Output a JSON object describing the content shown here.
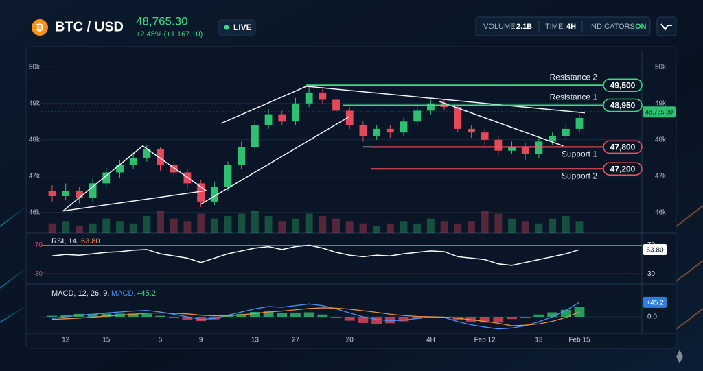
{
  "header": {
    "symbol": "BTC / USD",
    "price": "48,765.30",
    "change": "+2.45% (+1,167.10)",
    "status": "LIVE",
    "stats": [
      {
        "label": "VOLUME:",
        "value": "2.1B"
      },
      {
        "label": "TIME:",
        "value": "4H"
      },
      {
        "label": "INDICATORS:",
        "value": "ON"
      }
    ]
  },
  "chart_data": [
    {
      "type": "candlestick",
      "categories": [
        null,
        "12",
        null,
        null,
        "15",
        null,
        null,
        null,
        "5",
        null,
        null,
        "9",
        null,
        null,
        null,
        "13",
        null,
        null,
        "27",
        null,
        null,
        null,
        "20",
        null,
        null,
        null,
        null,
        null,
        "4H",
        null,
        null,
        null,
        "Feb 12",
        null,
        null,
        null,
        "13",
        null,
        null,
        "Feb 15"
      ],
      "open": [
        46600,
        46450,
        46600,
        46400,
        46800,
        47100,
        47300,
        47500,
        47750,
        47300,
        47100,
        46800,
        46300,
        46700,
        47300,
        47800,
        48400,
        48700,
        48500,
        49000,
        49300,
        49100,
        48800,
        48400,
        48100,
        48300,
        48200,
        48500,
        48800,
        49000,
        48900,
        48300,
        48200,
        48000,
        47700,
        47800,
        47600,
        47950,
        48100,
        48300
      ],
      "high": [
        46750,
        46800,
        46700,
        46950,
        47250,
        47450,
        47650,
        47850,
        47800,
        47400,
        47200,
        46900,
        46850,
        47400,
        47950,
        48600,
        48850,
        48800,
        49150,
        49450,
        49400,
        49200,
        48900,
        48500,
        48400,
        48400,
        48600,
        48950,
        49100,
        49100,
        48950,
        48400,
        48300,
        48100,
        47950,
        47900,
        48050,
        48200,
        48450,
        48700
      ],
      "low": [
        46300,
        46350,
        46250,
        46300,
        46700,
        46950,
        47200,
        47400,
        47150,
        47000,
        46650,
        46150,
        46200,
        46600,
        47200,
        47700,
        48300,
        48400,
        48400,
        48900,
        49000,
        48700,
        48300,
        47950,
        48000,
        48050,
        48100,
        48400,
        48700,
        48800,
        48200,
        48050,
        47850,
        47550,
        47600,
        47450,
        47500,
        47850,
        48000,
        48200
      ],
      "close": [
        46450,
        46600,
        46400,
        46800,
        47100,
        47300,
        47500,
        47750,
        47300,
        47100,
        46800,
        46300,
        46700,
        47300,
        47800,
        48400,
        48700,
        48500,
        49000,
        49300,
        49100,
        48800,
        48400,
        48100,
        48300,
        48200,
        48500,
        48800,
        49000,
        48900,
        48300,
        48200,
        48000,
        47700,
        47800,
        47600,
        47950,
        48100,
        48300,
        48600
      ],
      "volume": [
        4,
        5,
        3,
        4,
        6,
        5,
        4,
        7,
        9,
        6,
        5,
        8,
        6,
        7,
        8,
        9,
        7,
        5,
        6,
        8,
        7,
        6,
        5,
        4,
        3,
        4,
        5,
        4,
        6,
        5,
        4,
        5,
        9,
        8,
        6,
        5,
        4,
        6,
        7,
        5
      ],
      "up_color": "#2fbf71",
      "down_color": "#e5475b",
      "ylim": [
        45430,
        50430
      ],
      "yticks": [
        {
          "value": 46000,
          "label": "46k"
        },
        {
          "value": 47000,
          "label": "47k"
        },
        {
          "value": 48000,
          "label": "48k"
        },
        {
          "value": 49000,
          "label": "49k"
        },
        {
          "value": 50000,
          "label": "50k"
        }
      ],
      "grid": true,
      "levels": [
        {
          "name": "Resistance 2",
          "value": 49500,
          "value_label": "49,500",
          "color": "#3ddc84"
        },
        {
          "name": "Resistance 1",
          "value": 48950,
          "value_label": "48,950",
          "color": "#3ddc84"
        },
        {
          "name": "Support 1",
          "value": 47800,
          "value_label": "47,800",
          "color": "#ff4d5a"
        },
        {
          "name": "Support 2",
          "value": 47200,
          "value_label": "47,200",
          "color": "#ff4d5a"
        }
      ],
      "trendlines": [
        {
          "points": [
            [
              0.8,
              46040
            ],
            [
              6.7,
              47830
            ],
            [
              11.4,
              46600
            ]
          ]
        },
        {
          "points": [
            [
              0.8,
              46040
            ],
            [
              11.4,
              46600
            ]
          ]
        },
        {
          "points": [
            [
              11,
              46230
            ],
            [
              22,
              48640
            ]
          ]
        },
        {
          "points": [
            [
              12.5,
              48450
            ],
            [
              18.8,
              49470
            ],
            [
              39.4,
              48740
            ]
          ]
        },
        {
          "points": [
            [
              23,
              47800
            ],
            [
              37.8,
              47800
            ]
          ]
        },
        {
          "points": [
            [
              28.6,
              49060
            ],
            [
              37.8,
              47830
            ]
          ]
        }
      ],
      "current": {
        "value": 48765.3,
        "label": "48,765.30",
        "color": "#2fbf71"
      }
    },
    {
      "type": "line",
      "title": "RSI, 14,",
      "values": [
        55,
        57,
        56,
        58,
        60,
        61,
        63,
        64,
        58,
        55,
        52,
        46,
        52,
        58,
        62,
        66,
        68,
        64,
        68,
        70,
        66,
        60,
        56,
        54,
        56,
        55,
        58,
        60,
        62,
        61,
        54,
        52,
        50,
        44,
        42,
        46,
        50,
        54,
        58,
        63.8
      ],
      "color": "#ffffff",
      "ylim": [
        18,
        82
      ],
      "yticks": [
        70,
        30
      ],
      "grid": true,
      "grid_color": "#e5475b",
      "current": {
        "value": 63.8,
        "label": "63.80",
        "color": "#ff8c69"
      }
    },
    {
      "type": "macd",
      "title": "MACD, 12, 26, 9,",
      "series": [
        {
          "name": "MACD,",
          "color": "#4f8ff7",
          "values": [
            -5,
            0,
            5,
            8,
            12,
            15,
            18,
            20,
            15,
            8,
            0,
            -8,
            -5,
            5,
            15,
            25,
            32,
            30,
            35,
            40,
            35,
            25,
            12,
            0,
            -8,
            -12,
            -10,
            -5,
            0,
            -2,
            -15,
            -25,
            -32,
            -38,
            -35,
            -28,
            -15,
            0,
            20,
            45.2
          ]
        },
        {
          "color": "#e8913c",
          "values": [
            -8,
            -6,
            -4,
            -1,
            2,
            5,
            8,
            11,
            12,
            11,
            9,
            5,
            3,
            3,
            6,
            10,
            15,
            18,
            22,
            26,
            28,
            27,
            24,
            19,
            14,
            8,
            4,
            1,
            0,
            -1,
            -4,
            -9,
            -14,
            -20,
            -28,
            -26,
            -22,
            -14,
            -2,
            15
          ]
        }
      ],
      "histogram": {
        "values": [
          3,
          6,
          9,
          9,
          10,
          10,
          10,
          9,
          3,
          -3,
          -9,
          -13,
          -8,
          2,
          9,
          15,
          17,
          12,
          13,
          14,
          7,
          -2,
          -12,
          -19,
          -22,
          -20,
          -14,
          -6,
          0,
          -1,
          -11,
          -16,
          -18,
          -18,
          -7,
          -2,
          7,
          14,
          22,
          30
        ],
        "up_color": "#2fbf71",
        "down_color": "#e5475b"
      },
      "ylim": [
        -60,
        90
      ],
      "yticks": [
        {
          "value": 0,
          "label": "0.0"
        }
      ],
      "current": {
        "value": 45.2,
        "label": "+45.2",
        "color": "#2f7de1"
      }
    }
  ]
}
